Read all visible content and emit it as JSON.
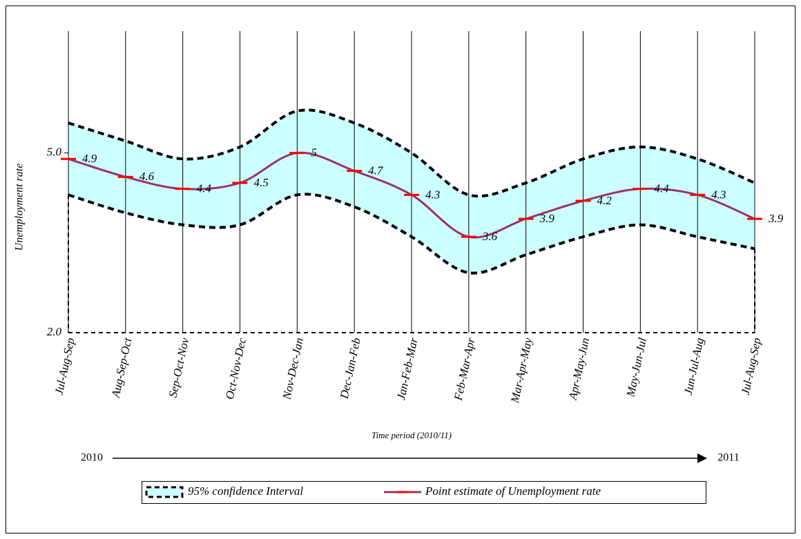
{
  "chart_data": {
    "type": "line",
    "y_label": "Unemployment rate",
    "x_label": "Time period (2010/11)",
    "start_label": "2010",
    "end_label": "2011",
    "categories": [
      "Jul-Aug-Sep",
      "Aug-Sep-Oct",
      "Sep-Oct-Nov",
      "Oct-Nov-Dec",
      "Nov-Dec-Jan",
      "Dec-Jan-Feb",
      "Jan-Feb-Mar",
      "Feb-Mar-Apr",
      "Mar-Apr-May",
      "Apr-May-Jun",
      "May-Jun-Jul",
      "Jun-Jul-Aug",
      "Jul-Aug-Sep"
    ],
    "series": [
      {
        "name": "95% confidence Interval",
        "color": "#ccffff",
        "upper": [
          5.5,
          5.2,
          4.9,
          5.1,
          5.7,
          5.5,
          5.0,
          4.3,
          4.5,
          4.9,
          5.1,
          4.9,
          4.5
        ],
        "lower": [
          4.3,
          4.0,
          3.8,
          3.8,
          4.3,
          4.1,
          3.6,
          3.0,
          3.3,
          3.6,
          3.8,
          3.6,
          3.4
        ]
      },
      {
        "name": "Point estimate of Unemployment rate",
        "color": "#993366",
        "marker_color": "#ff0000",
        "values": [
          4.9,
          4.6,
          4.4,
          4.5,
          5.0,
          4.7,
          4.3,
          3.6,
          3.9,
          4.2,
          4.4,
          4.3,
          3.9
        ]
      }
    ],
    "ylim": [
      2,
      7
    ],
    "yticks": [
      {
        "value": 2,
        "label": "2.0"
      },
      {
        "value": 5,
        "label": "5.0"
      }
    ]
  }
}
